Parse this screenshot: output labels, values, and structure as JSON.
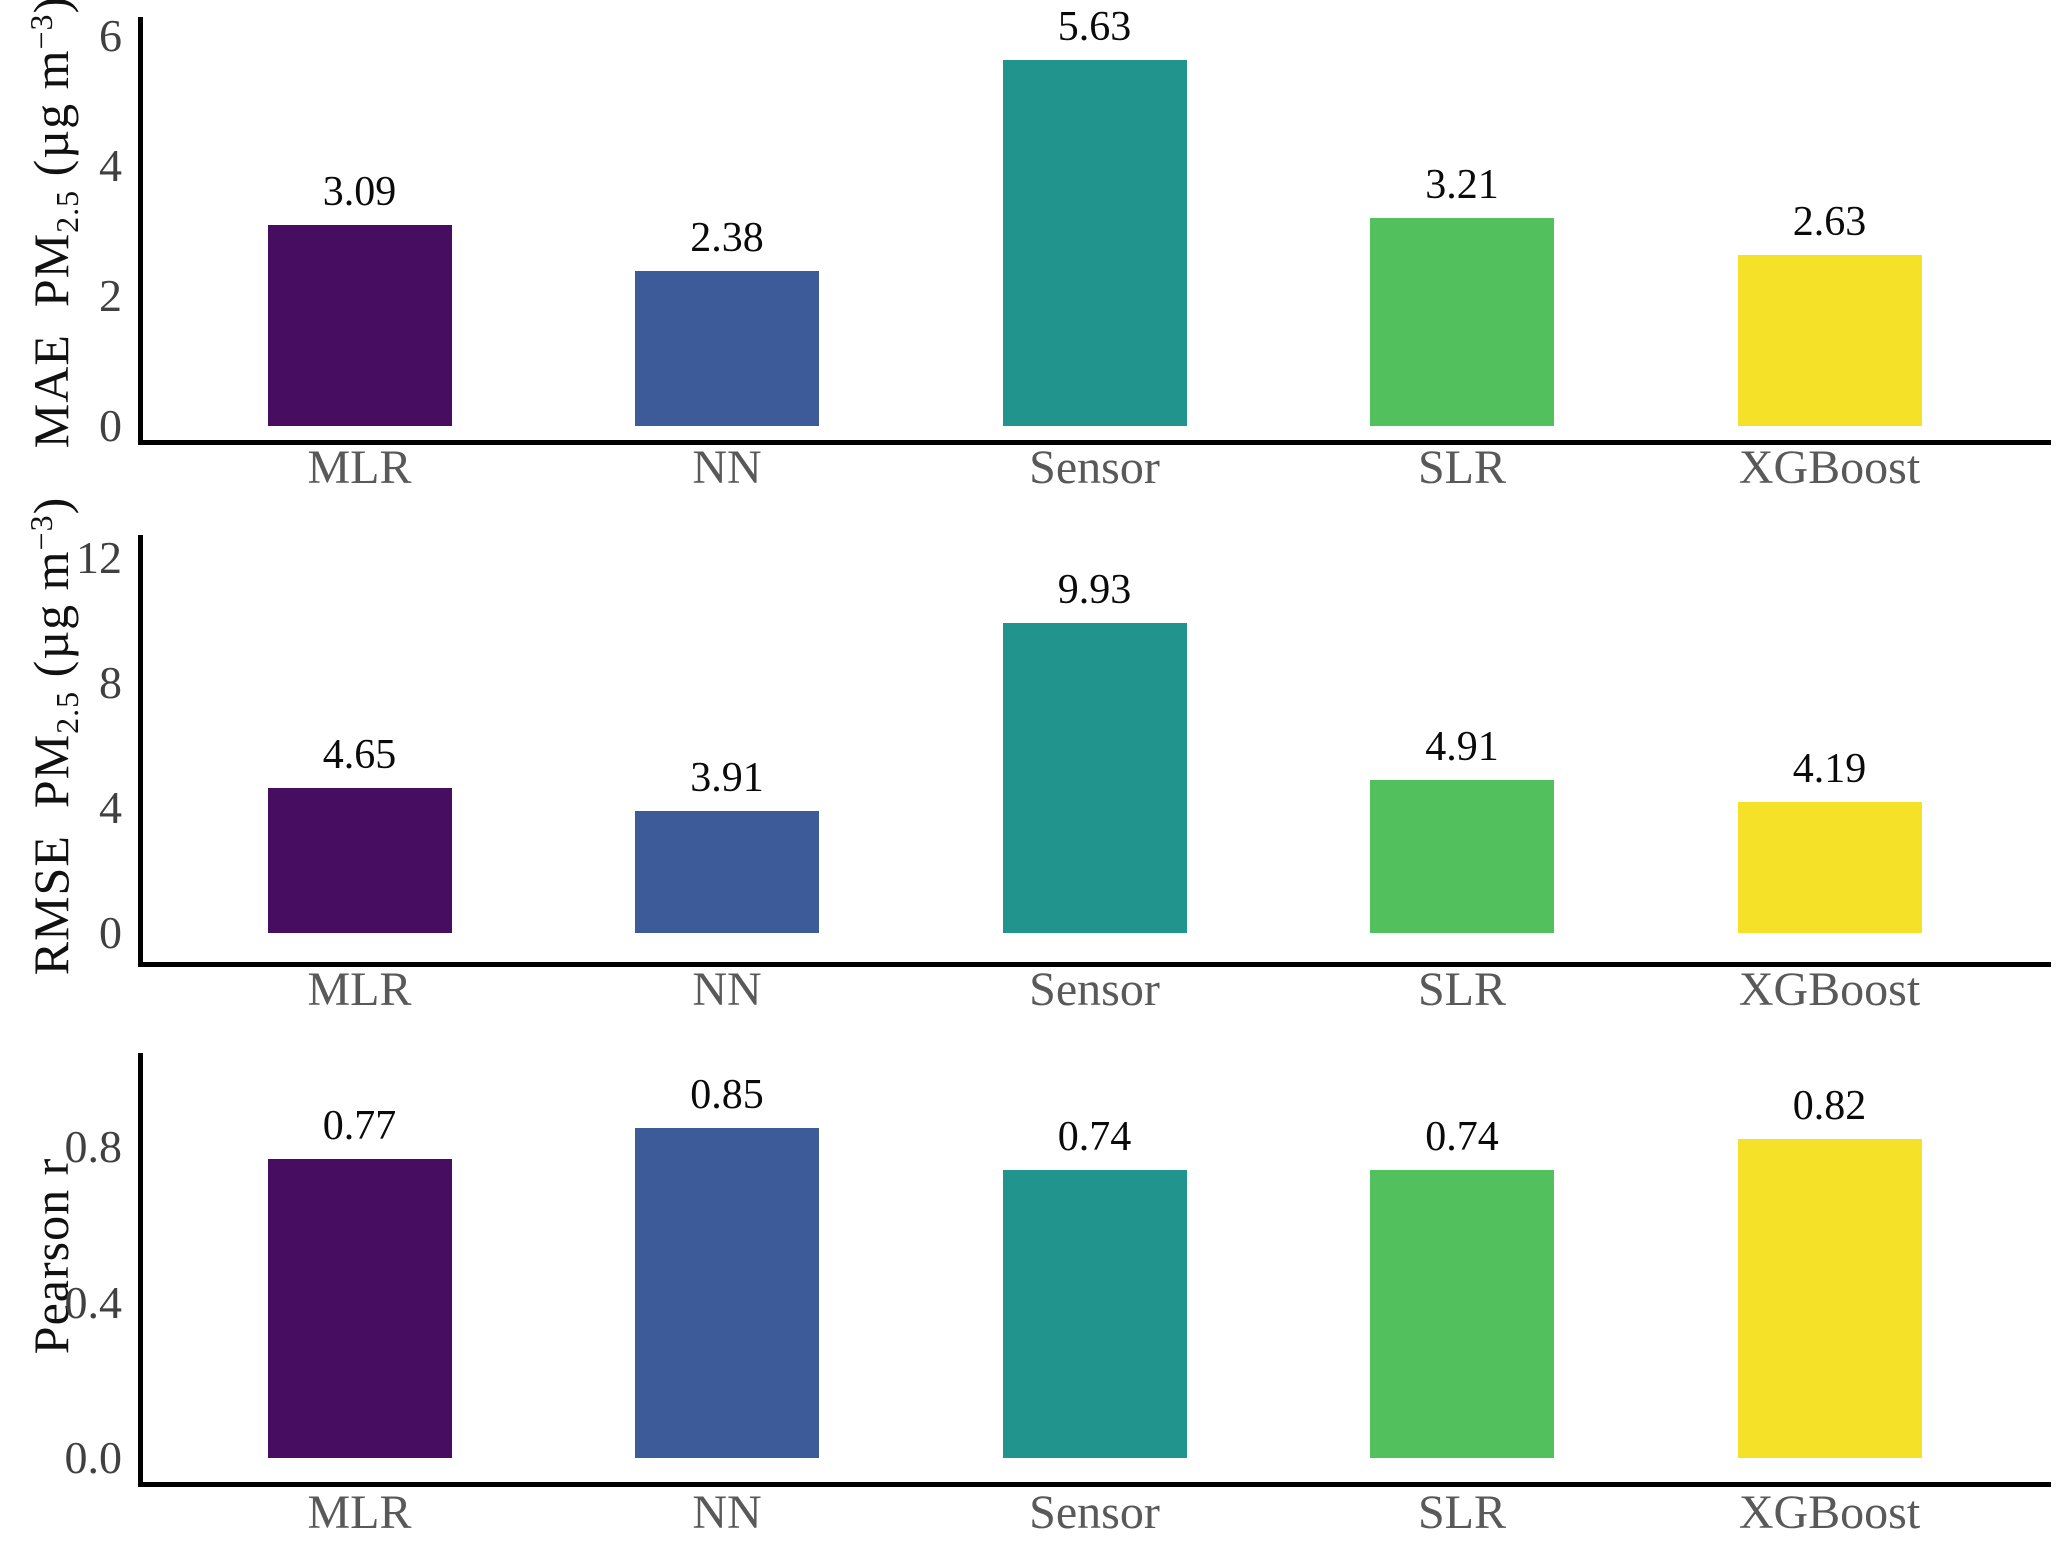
{
  "chart_data": [
    {
      "type": "bar",
      "title": "",
      "categories": [
        "MLR",
        "NN",
        "Sensor",
        "SLR",
        "XGBoost"
      ],
      "values": [
        3.09,
        2.38,
        5.63,
        3.21,
        2.63
      ],
      "value_labels": [
        "3.09",
        "2.38",
        "5.63",
        "3.21",
        "2.63"
      ],
      "ylabel": "MAE PM2.5 (µg m−3)",
      "ylabel_parts": {
        "p0": "MAE  PM",
        "sub": "2.5",
        "p1": " (µg m",
        "sup": "−3",
        "p2": ")"
      },
      "yticks": [
        {
          "v": 0,
          "label": "0"
        },
        {
          "v": 2,
          "label": "2"
        },
        {
          "v": 4,
          "label": "4"
        },
        {
          "v": 6,
          "label": "6"
        }
      ],
      "ylim": [
        0,
        6.3
      ],
      "xlabel": "",
      "grid": false,
      "legend_position": "none",
      "bar_colors": [
        "#470d60",
        "#3d5a99",
        "#21948e",
        "#53c05e",
        "#f5e127"
      ]
    },
    {
      "type": "bar",
      "title": "",
      "categories": [
        "MLR",
        "NN",
        "Sensor",
        "SLR",
        "XGBoost"
      ],
      "values": [
        4.65,
        3.91,
        9.93,
        4.91,
        4.19
      ],
      "value_labels": [
        "4.65",
        "3.91",
        "9.93",
        "4.91",
        "4.19"
      ],
      "ylabel": "RMSE PM2.5 (µg m−3)",
      "ylabel_parts": {
        "p0": "RMSE  PM",
        "sub": "2.5",
        "p1": " (µg m",
        "sup": "−3",
        "p2": ")"
      },
      "yticks": [
        {
          "v": 0,
          "label": "0"
        },
        {
          "v": 4,
          "label": "4"
        },
        {
          "v": 8,
          "label": "8"
        },
        {
          "v": 12,
          "label": "12"
        }
      ],
      "ylim": [
        0,
        12.75
      ],
      "xlabel": "",
      "grid": false,
      "legend_position": "none",
      "bar_colors": [
        "#470d60",
        "#3d5a99",
        "#21948e",
        "#53c05e",
        "#f5e127"
      ]
    },
    {
      "type": "bar",
      "title": "",
      "categories": [
        "MLR",
        "NN",
        "Sensor",
        "SLR",
        "XGBoost"
      ],
      "values": [
        0.77,
        0.85,
        0.74,
        0.74,
        0.82
      ],
      "value_labels": [
        "0.77",
        "0.85",
        "0.74",
        "0.74",
        "0.82"
      ],
      "ylabel": "Pearson r",
      "ylabel_parts": {
        "p0": "Pearson r",
        "sub": "",
        "p1": "",
        "sup": "",
        "p2": ""
      },
      "yticks": [
        {
          "v": 0,
          "label": "0.0"
        },
        {
          "v": 0.4,
          "label": "0.4"
        },
        {
          "v": 0.8,
          "label": "0.8"
        }
      ],
      "ylim": [
        0,
        1.042
      ],
      "xlabel": "",
      "grid": false,
      "legend_position": "none",
      "bar_colors": [
        "#470d60",
        "#3d5a99",
        "#21948e",
        "#53c05e",
        "#f5e127"
      ]
    }
  ],
  "styles": {
    "background": "#ffffff",
    "axis_color": "#000000",
    "tick_label_color": "#404040",
    "category_label_color": "#595959",
    "value_label_color": "#0a0a0a",
    "ylabel_color": "#111111"
  }
}
